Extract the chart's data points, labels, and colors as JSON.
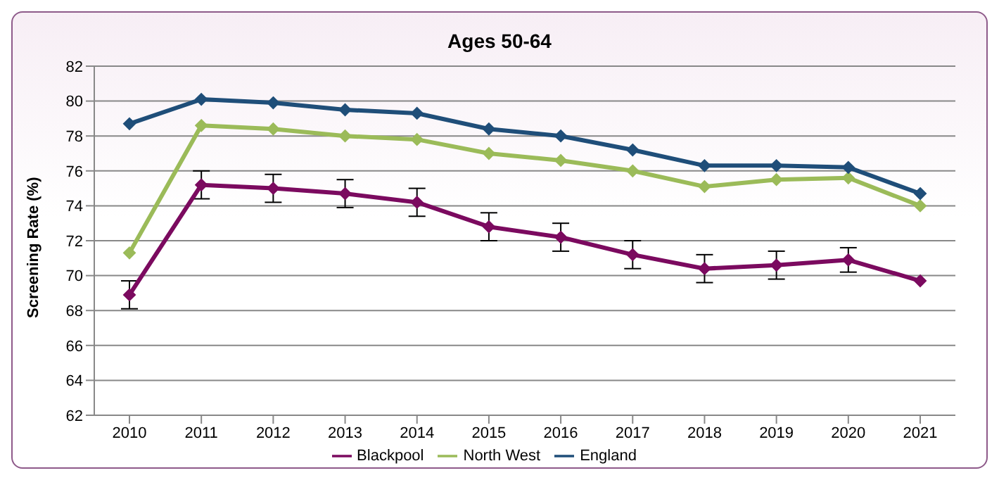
{
  "chart_data": {
    "type": "line",
    "title": "Ages 50-64",
    "ylabel": "Screening Rate (%)",
    "categories": [
      "2010",
      "2011",
      "2012",
      "2013",
      "2014",
      "2015",
      "2016",
      "2017",
      "2018",
      "2019",
      "2020",
      "2021"
    ],
    "series": [
      {
        "name": "Blackpool",
        "color": "#7b0a5f",
        "values": [
          68.9,
          75.2,
          75.0,
          74.7,
          74.2,
          72.8,
          72.2,
          71.2,
          70.4,
          70.6,
          70.9,
          69.7
        ],
        "errors": [
          0.8,
          0.8,
          0.8,
          0.8,
          0.8,
          0.8,
          0.8,
          0.8,
          0.8,
          0.8,
          0.7,
          null
        ]
      },
      {
        "name": "North West",
        "color": "#9bbb59",
        "values": [
          71.3,
          78.6,
          78.4,
          78.0,
          77.8,
          77.0,
          76.6,
          76.0,
          75.1,
          75.5,
          75.6,
          74.0
        ]
      },
      {
        "name": "England",
        "color": "#1f4e79",
        "values": [
          78.7,
          80.1,
          79.9,
          79.5,
          79.3,
          78.4,
          78.0,
          77.2,
          76.3,
          76.3,
          76.2,
          74.7
        ]
      }
    ],
    "ylim": [
      62,
      82
    ],
    "yticks": [
      62,
      64,
      66,
      68,
      70,
      72,
      74,
      76,
      78,
      80,
      82
    ],
    "grid": "y",
    "legend": "bottom",
    "marker": "diamond",
    "line_style": "solid"
  }
}
